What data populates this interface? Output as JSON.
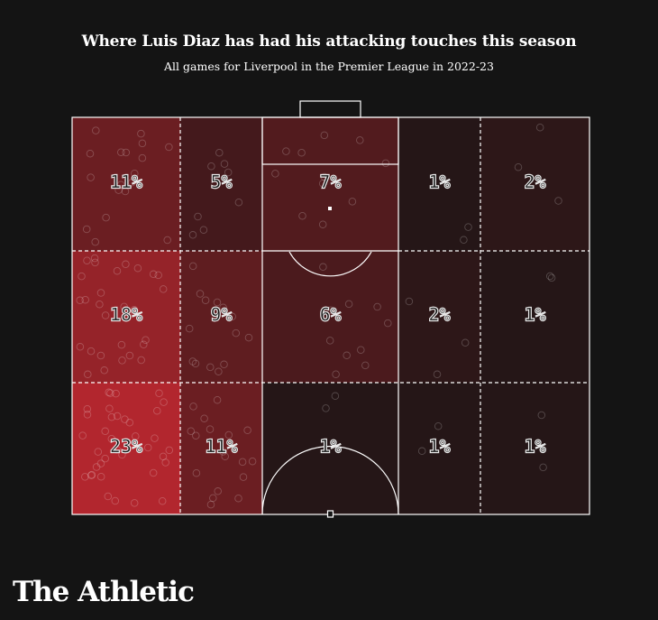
{
  "header": {
    "title": "Where Luis Diaz has had his attacking touches this season",
    "subtitle": "All games for Liverpool in the Premier League in 2022-23"
  },
  "brand": {
    "name": "The Athletic"
  },
  "colors": {
    "background": "#141414",
    "pitch_lines": "#ffffff",
    "heat_max": "#b2262e",
    "heat_min": "#141414"
  },
  "chart_data": {
    "type": "heatmap",
    "description_rows": [
      "attacking-third",
      "middle",
      "own-half-edge"
    ],
    "columns": [
      "left-wide",
      "left-half-space",
      "central",
      "right-half-space",
      "right-wide"
    ],
    "cells": [
      [
        11,
        5,
        7,
        1,
        2
      ],
      [
        18,
        9,
        6,
        2,
        1
      ],
      [
        23,
        11,
        1,
        1,
        1
      ]
    ],
    "unit": "%"
  }
}
